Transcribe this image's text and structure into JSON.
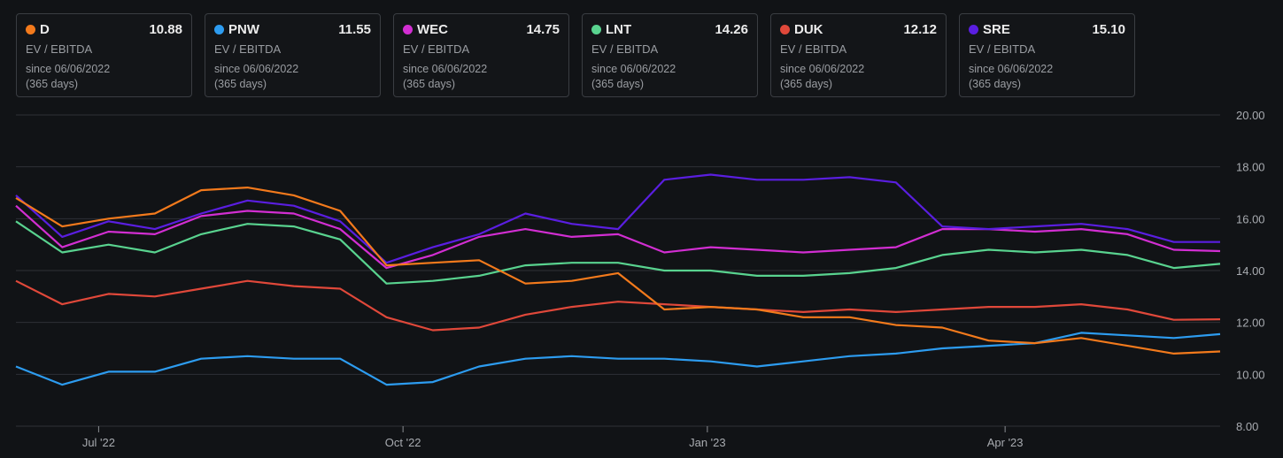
{
  "cards": [
    {
      "ticker": "D",
      "value": "10.88",
      "metric": "EV / EBITDA",
      "since": "since 06/06/2022",
      "days": "(365 days)",
      "color": "#f37a1c"
    },
    {
      "ticker": "PNW",
      "value": "11.55",
      "metric": "EV / EBITDA",
      "since": "since 06/06/2022",
      "days": "(365 days)",
      "color": "#2d9cf0"
    },
    {
      "ticker": "WEC",
      "value": "14.75",
      "metric": "EV / EBITDA",
      "since": "since 06/06/2022",
      "days": "(365 days)",
      "color": "#d22ed2"
    },
    {
      "ticker": "LNT",
      "value": "14.26",
      "metric": "EV / EBITDA",
      "since": "since 06/06/2022",
      "days": "(365 days)",
      "color": "#59d38f"
    },
    {
      "ticker": "DUK",
      "value": "12.12",
      "metric": "EV / EBITDA",
      "since": "since 06/06/2022",
      "days": "(365 days)",
      "color": "#e0483a"
    },
    {
      "ticker": "SRE",
      "value": "15.10",
      "metric": "EV / EBITDA",
      "since": "since 06/06/2022",
      "days": "(365 days)",
      "color": "#5a1ee0"
    }
  ],
  "chart_data": {
    "type": "line",
    "ylim": [
      8,
      20
    ],
    "yticks": [
      "20.00",
      "18.00",
      "16.00",
      "14.00",
      "12.00",
      "10.00",
      "8.00"
    ],
    "xticks": [
      {
        "label": "Jul '22",
        "date": "2022-07-01"
      },
      {
        "label": "Oct '22",
        "date": "2022-10-01"
      },
      {
        "label": "Jan '23",
        "date": "2023-01-01"
      },
      {
        "label": "Apr '23",
        "date": "2023-04-01"
      }
    ],
    "grid": true,
    "x": [
      "2022-06-06",
      "2022-06-20",
      "2022-07-04",
      "2022-07-18",
      "2022-08-01",
      "2022-08-15",
      "2022-08-29",
      "2022-09-12",
      "2022-09-26",
      "2022-10-10",
      "2022-10-24",
      "2022-11-07",
      "2022-11-21",
      "2022-12-05",
      "2022-12-19",
      "2023-01-02",
      "2023-01-16",
      "2023-01-30",
      "2023-02-13",
      "2023-02-27",
      "2023-03-13",
      "2023-03-27",
      "2023-04-10",
      "2023-04-24",
      "2023-05-08",
      "2023-05-22",
      "2023-06-05"
    ],
    "series": [
      {
        "name": "D",
        "color": "#f37a1c",
        "values": [
          16.8,
          15.7,
          16.0,
          16.2,
          17.1,
          17.2,
          16.9,
          16.3,
          14.2,
          14.3,
          14.4,
          13.5,
          13.6,
          13.9,
          12.5,
          12.6,
          12.5,
          12.2,
          12.2,
          11.9,
          11.8,
          11.3,
          11.2,
          11.4,
          11.1,
          10.8,
          10.88
        ]
      },
      {
        "name": "PNW",
        "color": "#2d9cf0",
        "values": [
          10.3,
          9.6,
          10.1,
          10.1,
          10.6,
          10.7,
          10.6,
          10.6,
          9.6,
          9.7,
          10.3,
          10.6,
          10.7,
          10.6,
          10.6,
          10.5,
          10.3,
          10.5,
          10.7,
          10.8,
          11.0,
          11.1,
          11.2,
          11.6,
          11.5,
          11.4,
          11.55
        ]
      },
      {
        "name": "WEC",
        "color": "#d22ed2",
        "values": [
          16.5,
          14.9,
          15.5,
          15.4,
          16.1,
          16.3,
          16.2,
          15.6,
          14.1,
          14.6,
          15.3,
          15.6,
          15.3,
          15.4,
          14.7,
          14.9,
          14.8,
          14.7,
          14.8,
          14.9,
          15.6,
          15.6,
          15.5,
          15.6,
          15.4,
          14.8,
          14.75
        ]
      },
      {
        "name": "LNT",
        "color": "#59d38f",
        "values": [
          15.9,
          14.7,
          15.0,
          14.7,
          15.4,
          15.8,
          15.7,
          15.2,
          13.5,
          13.6,
          13.8,
          14.2,
          14.3,
          14.3,
          14.0,
          14.0,
          13.8,
          13.8,
          13.9,
          14.1,
          14.6,
          14.8,
          14.7,
          14.8,
          14.6,
          14.1,
          14.26
        ]
      },
      {
        "name": "DUK",
        "color": "#e0483a",
        "values": [
          13.6,
          12.7,
          13.1,
          13.0,
          13.3,
          13.6,
          13.4,
          13.3,
          12.2,
          11.7,
          11.8,
          12.3,
          12.6,
          12.8,
          12.7,
          12.6,
          12.5,
          12.4,
          12.5,
          12.4,
          12.5,
          12.6,
          12.6,
          12.7,
          12.5,
          12.1,
          12.12
        ]
      },
      {
        "name": "SRE",
        "color": "#5a1ee0",
        "values": [
          16.9,
          15.3,
          15.9,
          15.6,
          16.2,
          16.7,
          16.5,
          15.9,
          14.3,
          14.9,
          15.4,
          16.2,
          15.8,
          15.6,
          17.5,
          17.7,
          17.5,
          17.5,
          17.6,
          17.4,
          15.7,
          15.6,
          15.7,
          15.8,
          15.6,
          15.1,
          15.1
        ]
      }
    ]
  }
}
